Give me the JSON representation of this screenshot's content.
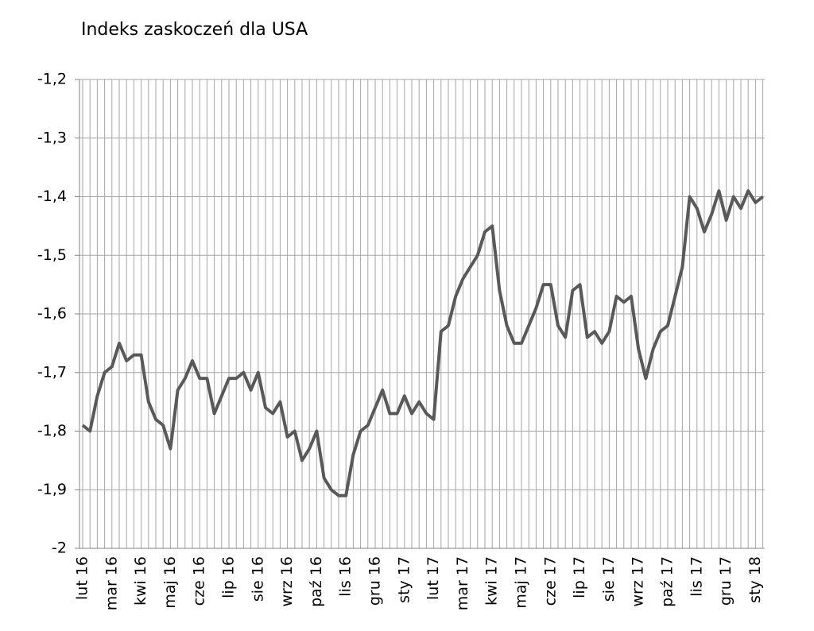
{
  "chart_data": {
    "type": "line",
    "title": "Indeks zaskoczeń dla USA",
    "categories": [
      "lut 16",
      null,
      null,
      null,
      "mar 16",
      null,
      null,
      null,
      "kwi 16",
      null,
      null,
      null,
      "maj 16",
      null,
      null,
      null,
      "cze 16",
      null,
      null,
      null,
      "lip 16",
      null,
      null,
      null,
      "sie 16",
      null,
      null,
      null,
      "wrz 16",
      null,
      null,
      null,
      "paź 16",
      null,
      null,
      null,
      "lis 16",
      null,
      null,
      null,
      "gru 16",
      null,
      null,
      null,
      "sty 17",
      null,
      null,
      null,
      "lut 17",
      null,
      null,
      null,
      "mar 17",
      null,
      null,
      null,
      "kwi 17",
      null,
      null,
      null,
      "maj 17",
      null,
      null,
      null,
      "cze 17",
      null,
      null,
      null,
      "lip 17",
      null,
      null,
      null,
      "sie 17",
      null,
      null,
      null,
      "wrz 17",
      null,
      null,
      null,
      "paź 17",
      null,
      null,
      null,
      "lis 17",
      null,
      null,
      null,
      "gru 17",
      null,
      null,
      null,
      "sty 18",
      null
    ],
    "series": [
      {
        "color": "#595959",
        "values": [
          -1.79,
          -1.8,
          -1.74,
          -1.7,
          -1.69,
          -1.65,
          -1.68,
          -1.67,
          -1.67,
          -1.75,
          -1.78,
          -1.79,
          -1.83,
          -1.73,
          -1.71,
          -1.68,
          -1.71,
          -1.71,
          -1.77,
          -1.74,
          -1.71,
          -1.71,
          -1.7,
          -1.73,
          -1.7,
          -1.76,
          -1.77,
          -1.75,
          -1.81,
          -1.8,
          -1.85,
          -1.83,
          -1.8,
          -1.88,
          -1.9,
          -1.91,
          -1.91,
          -1.84,
          -1.8,
          -1.79,
          -1.76,
          -1.73,
          -1.77,
          -1.77,
          -1.74,
          -1.77,
          -1.75,
          -1.77,
          -1.78,
          -1.63,
          -1.62,
          -1.57,
          -1.54,
          -1.52,
          -1.5,
          -1.46,
          -1.45,
          -1.56,
          -1.62,
          -1.65,
          -1.65,
          -1.62,
          -1.59,
          -1.55,
          -1.55,
          -1.62,
          -1.64,
          -1.56,
          -1.55,
          -1.64,
          -1.63,
          -1.65,
          -1.63,
          -1.57,
          -1.58,
          -1.57,
          -1.66,
          -1.71,
          -1.66,
          -1.63,
          -1.62,
          -1.57,
          -1.52,
          -1.4,
          -1.42,
          -1.46,
          -1.43,
          -1.39,
          -1.44,
          -1.4,
          -1.42,
          -1.39,
          -1.41,
          -1.4
        ]
      }
    ],
    "ylim": [
      -2,
      -1.2
    ],
    "yticks": [
      {
        "value": -1.2,
        "label": "-1,2"
      },
      {
        "value": -1.3,
        "label": "-1,3"
      },
      {
        "value": -1.4,
        "label": "-1,4"
      },
      {
        "value": -1.5,
        "label": "-1,5"
      },
      {
        "value": -1.6,
        "label": "-1,6"
      },
      {
        "value": -1.7,
        "label": "-1,7"
      },
      {
        "value": -1.8,
        "label": "-1,8"
      },
      {
        "value": -1.9,
        "label": "-1,9"
      },
      -2
    ],
    "grid": true
  }
}
